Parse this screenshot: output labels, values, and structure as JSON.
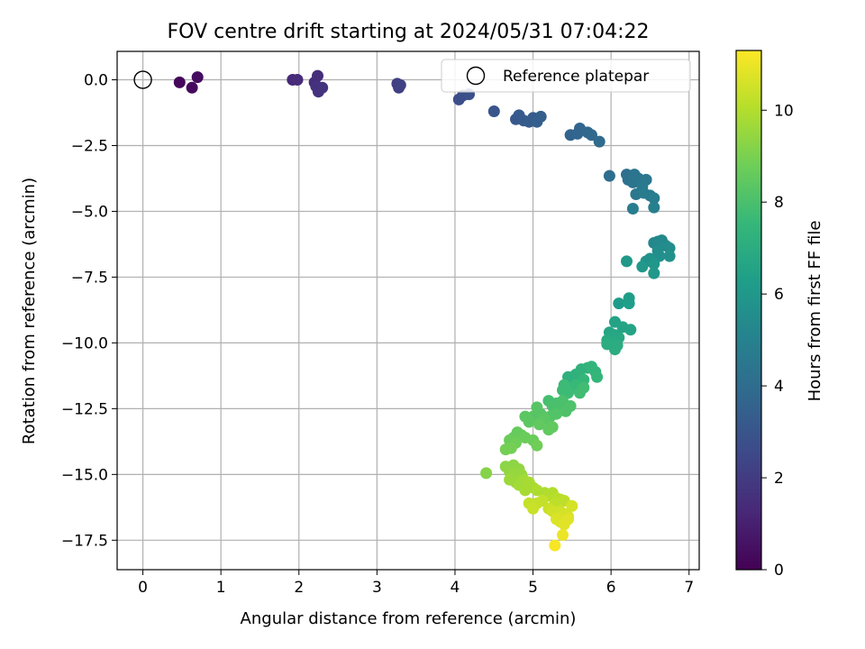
{
  "chart_data": {
    "type": "scatter",
    "title": "FOV centre drift starting at 2024/05/31 07:04:22",
    "xlabel": "Angular distance from reference (arcmin)",
    "ylabel": "Rotation from reference (arcmin)",
    "xlim": [
      -0.33,
      7.13
    ],
    "ylim": [
      -18.62,
      1.08
    ],
    "xticks": [
      0,
      1,
      2,
      3,
      4,
      5,
      6,
      7
    ],
    "xtick_labels": [
      "0",
      "1",
      "2",
      "3",
      "4",
      "5",
      "6",
      "7"
    ],
    "yticks": [
      0.0,
      -2.5,
      -5.0,
      -7.5,
      -10.0,
      -12.5,
      -15.0,
      -17.5
    ],
    "ytick_labels": [
      "0.0",
      "−2.5",
      "−5.0",
      "−7.5",
      "−10.0",
      "−12.5",
      "−15.0",
      "−17.5"
    ],
    "grid": true,
    "legend": {
      "position": "top-right",
      "entries": [
        "Reference platepar"
      ]
    },
    "reference_point": {
      "x": 0,
      "y": 0
    },
    "colorbar": {
      "label": "Hours from first FF file",
      "colormap": "viridis",
      "range": [
        0,
        11.3
      ],
      "ticks": [
        0,
        2,
        4,
        6,
        8,
        10
      ],
      "tick_labels": [
        "0",
        "2",
        "4",
        "6",
        "8",
        "10"
      ]
    },
    "colormap_stops": [
      "#440154",
      "#482878",
      "#3e4989",
      "#31688e",
      "#26828e",
      "#1f9e89",
      "#35b779",
      "#6ece58",
      "#b5de2b",
      "#fde725"
    ],
    "points": [
      [
        0.47,
        -0.1,
        0.2
      ],
      [
        0.63,
        -0.3,
        0.3
      ],
      [
        0.7,
        0.1,
        0.4
      ],
      [
        1.92,
        0.0,
        1.3
      ],
      [
        1.98,
        0.0,
        1.4
      ],
      [
        2.2,
        -0.1,
        1.5
      ],
      [
        2.24,
        0.15,
        1.5
      ],
      [
        2.22,
        -0.25,
        1.6
      ],
      [
        2.25,
        -0.45,
        1.6
      ],
      [
        2.3,
        -0.3,
        1.7
      ],
      [
        3.26,
        -0.15,
        2.1
      ],
      [
        3.28,
        -0.3,
        2.1
      ],
      [
        3.3,
        -0.2,
        2.2
      ],
      [
        4.05,
        -0.75,
        2.7
      ],
      [
        4.1,
        -0.6,
        2.7
      ],
      [
        4.18,
        -0.55,
        2.8
      ],
      [
        4.5,
        -1.2,
        3.0
      ],
      [
        4.78,
        -1.5,
        3.1
      ],
      [
        4.82,
        -1.35,
        3.2
      ],
      [
        4.88,
        -1.55,
        3.2
      ],
      [
        4.95,
        -1.6,
        3.3
      ],
      [
        5.0,
        -1.45,
        3.3
      ],
      [
        5.05,
        -1.6,
        3.4
      ],
      [
        5.1,
        -1.4,
        3.4
      ],
      [
        5.48,
        -2.1,
        3.6
      ],
      [
        5.57,
        -2.05,
        3.7
      ],
      [
        5.6,
        -1.85,
        3.7
      ],
      [
        5.7,
        -2.0,
        3.8
      ],
      [
        5.75,
        -2.1,
        3.8
      ],
      [
        5.85,
        -2.35,
        3.9
      ],
      [
        5.98,
        -3.65,
        4.0
      ],
      [
        6.2,
        -3.6,
        4.1
      ],
      [
        6.22,
        -3.8,
        4.2
      ],
      [
        6.25,
        -3.7,
        4.2
      ],
      [
        6.28,
        -3.9,
        4.3
      ],
      [
        6.3,
        -3.6,
        4.3
      ],
      [
        6.35,
        -3.75,
        4.4
      ],
      [
        6.32,
        -4.35,
        4.5
      ],
      [
        6.45,
        -3.8,
        4.5
      ],
      [
        6.4,
        -4.05,
        4.6
      ],
      [
        6.42,
        -4.3,
        4.7
      ],
      [
        6.5,
        -4.4,
        4.7
      ],
      [
        6.55,
        -4.5,
        4.8
      ],
      [
        6.28,
        -4.9,
        4.8
      ],
      [
        6.55,
        -4.85,
        4.9
      ],
      [
        6.55,
        -6.2,
        5.2
      ],
      [
        6.6,
        -6.15,
        5.3
      ],
      [
        6.65,
        -6.1,
        5.3
      ],
      [
        6.7,
        -6.3,
        5.4
      ],
      [
        6.75,
        -6.4,
        5.5
      ],
      [
        6.6,
        -6.5,
        5.5
      ],
      [
        6.62,
        -6.7,
        5.6
      ],
      [
        6.75,
        -6.7,
        5.7
      ],
      [
        6.5,
        -6.8,
        5.8
      ],
      [
        6.45,
        -6.9,
        5.8
      ],
      [
        6.55,
        -7.0,
        5.9
      ],
      [
        6.4,
        -7.1,
        6.0
      ],
      [
        6.55,
        -7.35,
        6.0
      ],
      [
        6.2,
        -6.9,
        6.0
      ],
      [
        6.1,
        -8.5,
        6.2
      ],
      [
        6.23,
        -8.3,
        6.3
      ],
      [
        6.23,
        -8.5,
        6.3
      ],
      [
        6.05,
        -9.2,
        6.5
      ],
      [
        6.15,
        -9.4,
        6.6
      ],
      [
        6.25,
        -9.5,
        6.6
      ],
      [
        5.98,
        -9.6,
        6.7
      ],
      [
        6.05,
        -9.7,
        6.7
      ],
      [
        6.1,
        -9.8,
        6.8
      ],
      [
        5.95,
        -9.9,
        6.9
      ],
      [
        6.02,
        -10.0,
        6.9
      ],
      [
        6.08,
        -10.1,
        7.0
      ],
      [
        6.05,
        -10.25,
        7.0
      ],
      [
        5.95,
        -10.05,
        7.0
      ],
      [
        5.45,
        -11.3,
        7.2
      ],
      [
        5.55,
        -11.2,
        7.2
      ],
      [
        5.62,
        -11.0,
        7.3
      ],
      [
        5.7,
        -10.95,
        7.3
      ],
      [
        5.75,
        -10.9,
        7.4
      ],
      [
        5.8,
        -11.1,
        7.4
      ],
      [
        5.82,
        -11.3,
        7.5
      ],
      [
        5.65,
        -11.4,
        7.5
      ],
      [
        5.55,
        -11.6,
        7.6
      ],
      [
        5.5,
        -11.7,
        7.6
      ],
      [
        5.4,
        -11.6,
        7.7
      ],
      [
        5.38,
        -11.8,
        7.7
      ],
      [
        5.45,
        -11.9,
        7.7
      ],
      [
        5.6,
        -11.9,
        7.8
      ],
      [
        5.65,
        -11.7,
        7.8
      ],
      [
        5.2,
        -12.2,
        7.9
      ],
      [
        5.3,
        -12.3,
        7.9
      ],
      [
        5.38,
        -12.2,
        8.0
      ],
      [
        5.25,
        -12.4,
        8.0
      ],
      [
        5.32,
        -12.5,
        8.0
      ],
      [
        5.48,
        -12.4,
        8.1
      ],
      [
        5.42,
        -12.6,
        8.1
      ],
      [
        5.3,
        -12.7,
        8.2
      ],
      [
        5.22,
        -12.8,
        8.2
      ],
      [
        5.05,
        -12.45,
        8.3
      ],
      [
        5.1,
        -12.7,
        8.3
      ],
      [
        5.0,
        -12.8,
        8.3
      ],
      [
        5.15,
        -12.9,
        8.4
      ],
      [
        4.95,
        -13.0,
        8.4
      ],
      [
        4.9,
        -12.8,
        8.4
      ],
      [
        5.08,
        -13.1,
        8.5
      ],
      [
        5.2,
        -13.3,
        8.5
      ],
      [
        5.25,
        -13.2,
        8.5
      ],
      [
        4.8,
        -13.4,
        8.6
      ],
      [
        4.85,
        -13.5,
        8.6
      ],
      [
        4.75,
        -13.6,
        8.6
      ],
      [
        4.7,
        -13.7,
        8.7
      ],
      [
        4.9,
        -13.6,
        8.7
      ],
      [
        5.0,
        -13.7,
        8.7
      ],
      [
        5.05,
        -13.9,
        8.8
      ],
      [
        4.78,
        -13.8,
        8.8
      ],
      [
        4.72,
        -14.0,
        8.9
      ],
      [
        4.65,
        -14.05,
        8.9
      ],
      [
        4.4,
        -14.95,
        9.2
      ],
      [
        4.65,
        -14.7,
        9.3
      ],
      [
        4.75,
        -14.65,
        9.3
      ],
      [
        4.82,
        -14.8,
        9.4
      ],
      [
        4.7,
        -14.9,
        9.4
      ],
      [
        4.75,
        -15.0,
        9.5
      ],
      [
        4.8,
        -15.1,
        9.5
      ],
      [
        4.85,
        -15.0,
        9.5
      ],
      [
        4.7,
        -15.2,
        9.6
      ],
      [
        4.78,
        -15.3,
        9.6
      ],
      [
        4.82,
        -15.4,
        9.7
      ],
      [
        4.88,
        -15.2,
        9.7
      ],
      [
        4.95,
        -15.3,
        9.8
      ],
      [
        5.0,
        -15.5,
        9.8
      ],
      [
        4.9,
        -15.6,
        9.8
      ],
      [
        5.05,
        -15.6,
        9.9
      ],
      [
        5.15,
        -15.7,
        9.9
      ],
      [
        5.2,
        -15.8,
        10.0
      ],
      [
        5.25,
        -15.7,
        10.0
      ],
      [
        5.3,
        -15.9,
        10.1
      ],
      [
        5.35,
        -15.95,
        10.1
      ],
      [
        5.4,
        -16.0,
        10.2
      ],
      [
        5.28,
        -16.1,
        10.2
      ],
      [
        5.12,
        -16.0,
        10.3
      ],
      [
        5.05,
        -16.1,
        10.3
      ],
      [
        4.95,
        -16.1,
        10.3
      ],
      [
        5.0,
        -16.3,
        10.4
      ],
      [
        5.2,
        -16.3,
        10.4
      ],
      [
        5.25,
        -16.4,
        10.5
      ],
      [
        5.3,
        -16.5,
        10.5
      ],
      [
        5.35,
        -16.4,
        10.5
      ],
      [
        5.4,
        -16.5,
        10.6
      ],
      [
        5.45,
        -16.6,
        10.6
      ],
      [
        5.5,
        -16.2,
        10.6
      ],
      [
        5.3,
        -16.7,
        10.7
      ],
      [
        5.35,
        -16.8,
        10.7
      ],
      [
        5.4,
        -16.9,
        10.8
      ],
      [
        5.45,
        -16.7,
        10.8
      ],
      [
        5.38,
        -17.3,
        11.0
      ],
      [
        5.28,
        -17.7,
        11.2
      ]
    ]
  }
}
